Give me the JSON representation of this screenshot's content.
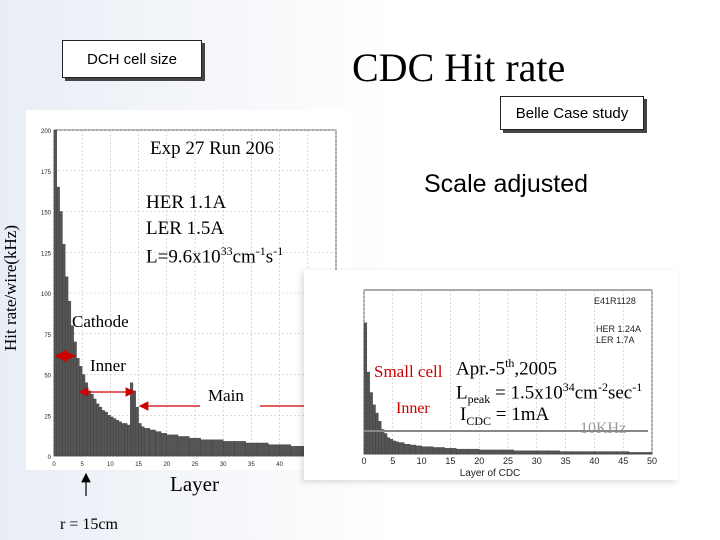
{
  "title": "CDC Hit rate",
  "box_dch": "DCH cell size",
  "box_belle": "Belle Case study",
  "scale_adjusted": "Scale adjusted",
  "ylabel": "Hit rate/wire(kHz)",
  "xlabel": "Layer",
  "r_label": "r = 15cm",
  "left_panel": {
    "exp": "Exp 27 Run 206",
    "her": "HER 1.1A",
    "ler": "LER 1.5A",
    "lum_pre": "L=9.6x10",
    "lum_exp": "33",
    "lum_unit": "cm",
    "lum_unit_exp1": "-1",
    "lum_s": "s",
    "lum_unit_exp2": "-1",
    "cathode": "Cathode",
    "inner": "Inner",
    "main": "Main"
  },
  "right_panel": {
    "run": "E41R1128",
    "her": "HER 1.24A",
    "ler": "LER 1.7A",
    "xlabel": "Layer of CDC",
    "small_cell": "Small cell",
    "date_pre": "Apr.-5",
    "date_sup": "th",
    "date_post": ",2005",
    "lpeak_pre": "L",
    "lpeak_sub": "peak",
    "lpeak_mid": " = 1.5x10",
    "lpeak_exp": "34",
    "lpeak_unit": "cm",
    "lpeak_e1": "-2",
    "lpeak_sec": "sec",
    "lpeak_e2": "-1",
    "inner": "Inner",
    "icdc_pre": "I",
    "icdc_sub": "CDC",
    "icdc_post": " = 1mA",
    "khz": "10KHz"
  },
  "chart_data": [
    {
      "type": "bar",
      "title": "Exp 27 Run 206",
      "xlabel": "Layer",
      "ylabel": "Hit rate/wire(kHz)",
      "xlim": [
        0,
        50
      ],
      "ylim": [
        0,
        200
      ],
      "x_ticks": [
        0,
        5,
        10,
        15,
        20,
        25,
        30,
        35,
        40,
        45,
        50
      ],
      "y_ticks": [
        0,
        25,
        50,
        75,
        100,
        125,
        150,
        175,
        200
      ],
      "grid": true,
      "x": [
        0,
        0.5,
        1,
        1.5,
        2,
        2.5,
        3,
        3.5,
        4,
        4.5,
        5,
        5.5,
        6,
        6.5,
        7,
        7.5,
        8,
        8.5,
        9,
        9.5,
        10,
        10.5,
        11,
        11.5,
        12,
        12.5,
        13,
        13.5,
        14,
        14.5,
        15,
        15.5,
        16,
        17,
        18,
        19,
        20,
        22,
        24,
        26,
        28,
        30,
        32,
        34,
        36,
        38,
        40,
        42,
        44,
        46,
        48,
        49.5
      ],
      "values": [
        200,
        165,
        150,
        130,
        110,
        95,
        80,
        70,
        60,
        55,
        50,
        45,
        40,
        38,
        35,
        32,
        30,
        28,
        27,
        25,
        24,
        23,
        22,
        21,
        20,
        20,
        19,
        45,
        40,
        30,
        20,
        18,
        17,
        16,
        15,
        14,
        13,
        12,
        11,
        10,
        10,
        9,
        9,
        8,
        8,
        7,
        7,
        6,
        6,
        5,
        5,
        4
      ]
    },
    {
      "type": "bar",
      "title": "E41R1128",
      "xlabel": "Layer of CDC",
      "xlim": [
        0,
        50
      ],
      "ylim": [
        0,
        200
      ],
      "x_ticks": [
        0,
        5,
        10,
        15,
        20,
        25,
        30,
        35,
        40,
        45,
        50
      ],
      "grid": true,
      "x": [
        0,
        0.5,
        1,
        1.5,
        2,
        2.5,
        3,
        3.5,
        4,
        4.5,
        5,
        5.5,
        6,
        7,
        8,
        9,
        10,
        11,
        12,
        13,
        14,
        15,
        16,
        18,
        20,
        22,
        24,
        26,
        28,
        30,
        32,
        34,
        36,
        38,
        40,
        42,
        44,
        46,
        48,
        49.5
      ],
      "values": [
        160,
        100,
        75,
        60,
        50,
        40,
        30,
        25,
        20,
        18,
        16,
        15,
        14,
        12,
        11,
        10,
        9,
        9,
        8,
        8,
        7,
        7,
        6,
        6,
        5,
        5,
        5,
        4,
        4,
        4,
        4,
        3,
        3,
        3,
        3,
        3,
        3,
        2,
        2,
        2
      ]
    }
  ]
}
